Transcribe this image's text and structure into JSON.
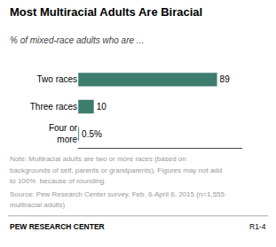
{
  "chart_data": {
    "type": "bar",
    "orientation": "horizontal",
    "title": "Most Multiracial Adults Are Biracial",
    "subtitle": "% of mixed-race adults who are ...",
    "categories": [
      "Two races",
      "Three races",
      "Four or\nmore"
    ],
    "values": [
      89,
      10,
      0.5
    ],
    "value_labels": [
      "89",
      "10",
      "0.5%"
    ],
    "data_labels": true,
    "color": "#3d7d6e",
    "xlim": [
      0,
      105
    ],
    "tick_labels": "y",
    "grid": false,
    "annotations": [
      {
        "text": "Note: Multiracial adults are two or more races (based on",
        "color": "#999999"
      },
      {
        "text": "backgrounds of self, parents or grandparents). Figures may not add",
        "color": "#999999"
      },
      {
        "text": "to 100%  because of rounding.",
        "color": "#999999"
      },
      {
        "text": "Source: Pew Research Center survey, Feb. 6-April 6, 2015 (n=1,555",
        "color": "#999999"
      },
      {
        "text": "multiracial adults)",
        "color": "#999999"
      }
    ],
    "footer": [
      "PEW RESEARCH CENTER",
      "R1-4"
    ]
  }
}
